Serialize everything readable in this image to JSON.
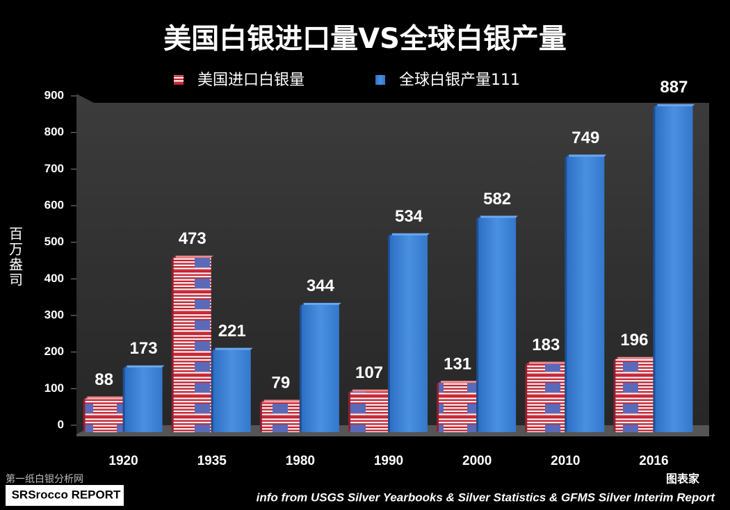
{
  "chart_data": {
    "type": "bar",
    "title": "美国白银进口量VS全球白银产量",
    "y_label": "百万盎司",
    "categories": [
      "1920",
      "1935",
      "1980",
      "1990",
      "2000",
      "2010",
      "2016"
    ],
    "series": [
      {
        "name": "美国进口白银量",
        "color": "#c8202f",
        "values": [
          88,
          473,
          79,
          107,
          131,
          183,
          196
        ]
      },
      {
        "name": "全球白银产量111",
        "color": "#3a7fd5",
        "values": [
          173,
          221,
          344,
          534,
          582,
          749,
          887
        ]
      }
    ],
    "ylim": [
      0,
      900
    ],
    "yticks": [
      0,
      100,
      200,
      300,
      400,
      500,
      600,
      700,
      800,
      900
    ],
    "grid": false,
    "source": "info from USGS Silver Yearbooks & Silver Statistics & GFMS Silver Interim Report",
    "annotations": [
      "第一纸白银分析网",
      "SRSrocco REPORT",
      "图表家"
    ]
  }
}
